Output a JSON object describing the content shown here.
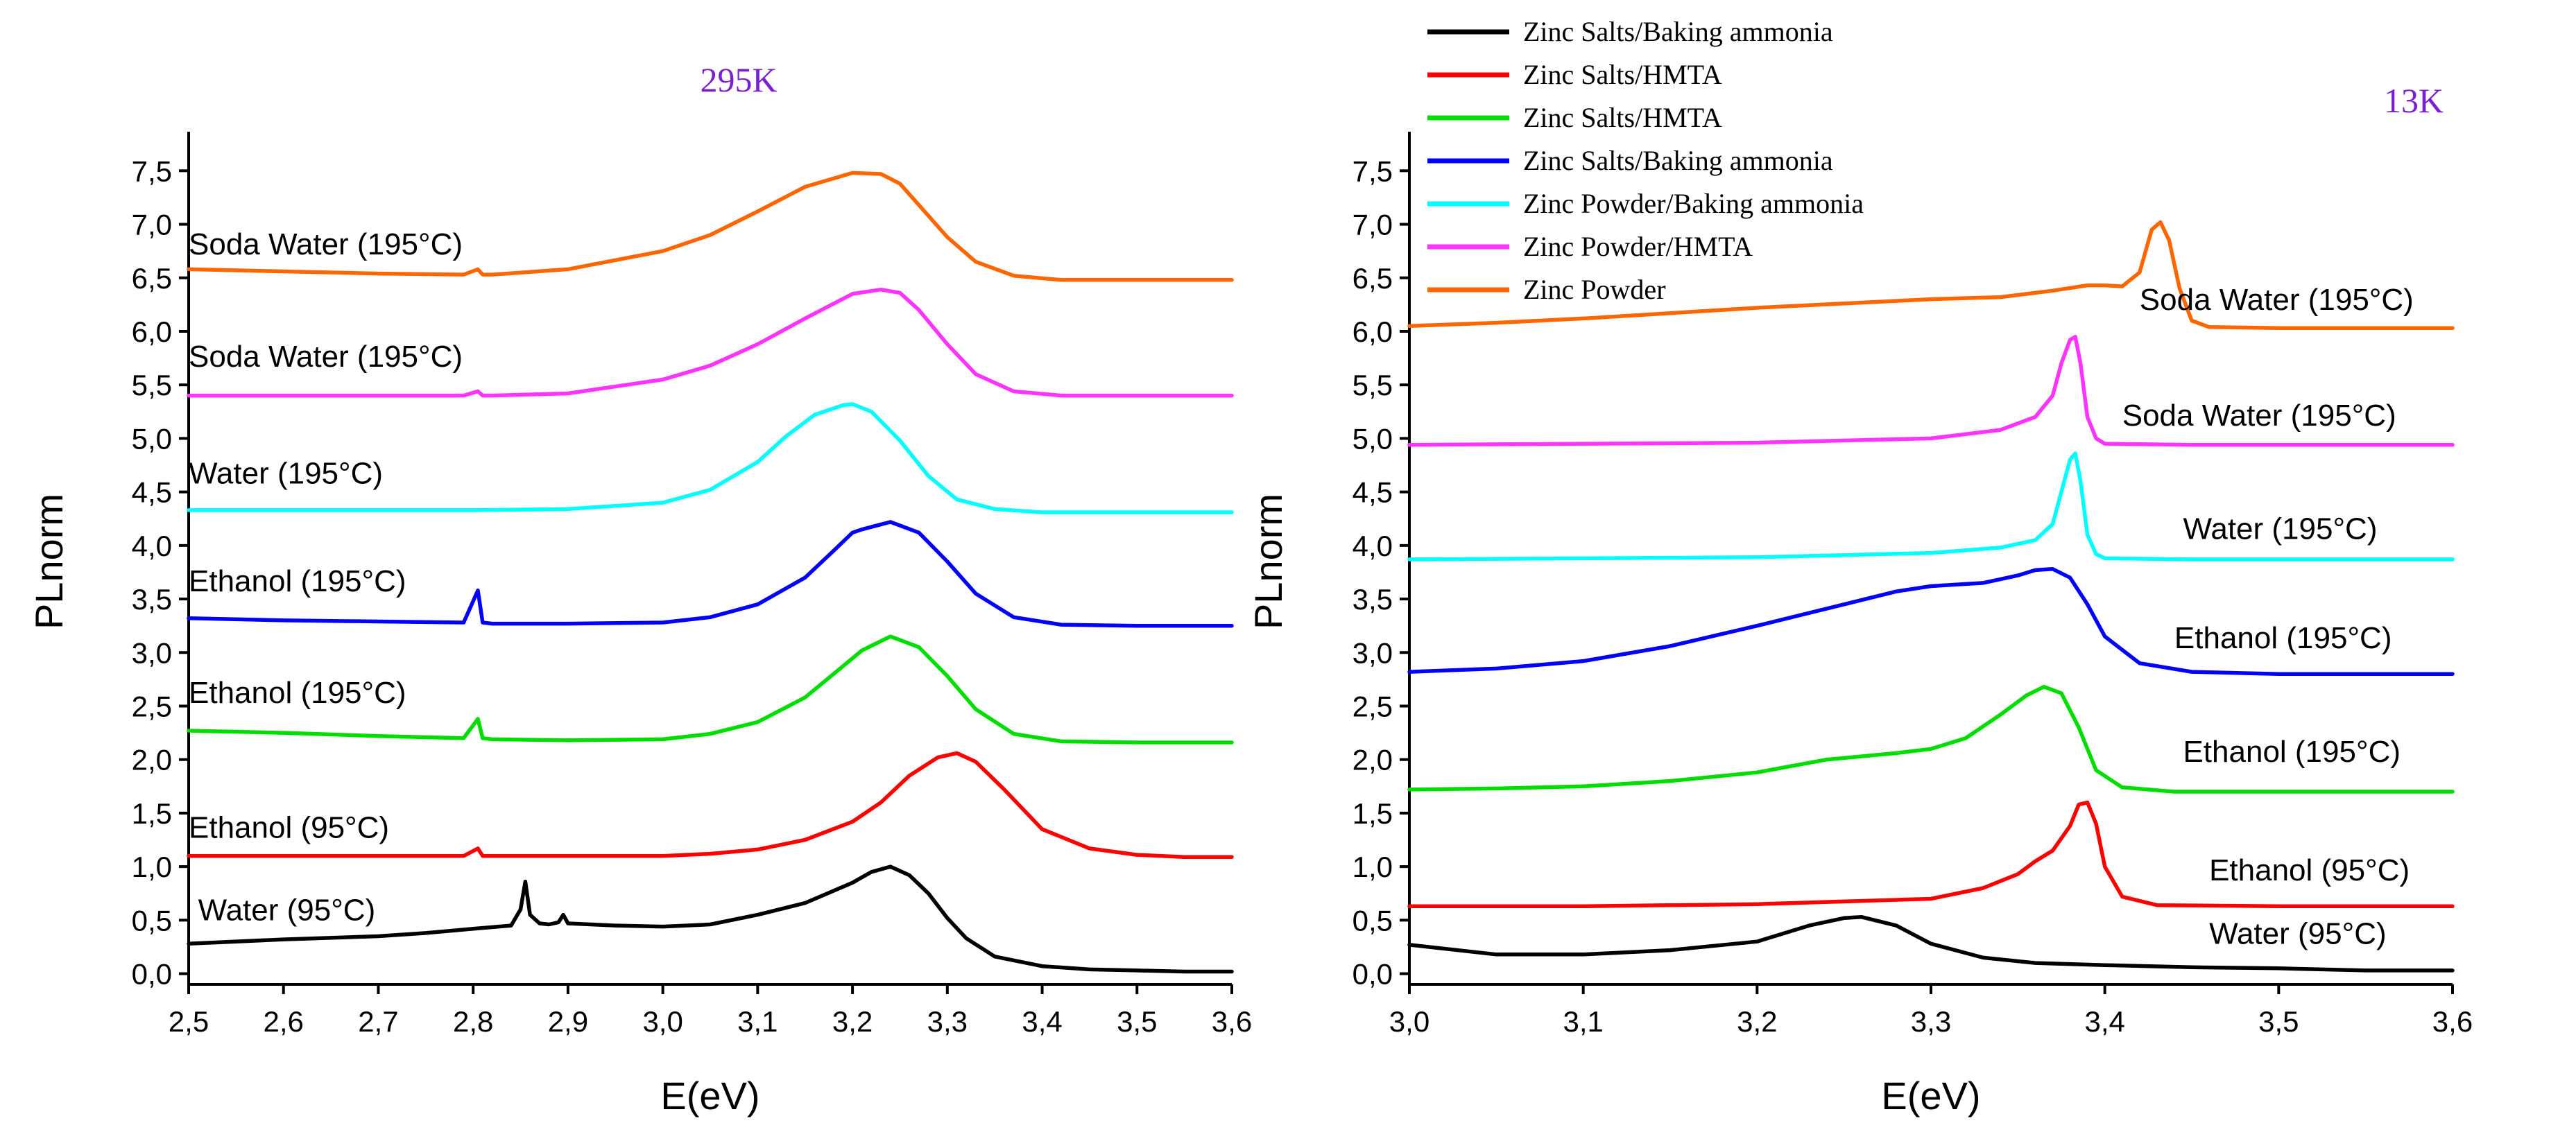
{
  "chart_data": [
    {
      "type": "line",
      "title": "295K",
      "xlabel": "E(eV)",
      "ylabel": "PLnorm",
      "xlim": [
        2.5,
        3.6
      ],
      "ylim": [
        -0.1,
        7.8
      ],
      "xticks": [
        2.5,
        2.6,
        2.7,
        2.8,
        2.9,
        3.0,
        3.1,
        3.2,
        3.3,
        3.4,
        3.5,
        3.6
      ],
      "xtick_labels": [
        "2,5",
        "2,6",
        "2,7",
        "2,8",
        "2,9",
        "3,0",
        "3,1",
        "3,2",
        "3,3",
        "3,4",
        "3,5",
        "3,6"
      ],
      "yticks": [
        0,
        0.5,
        1.0,
        1.5,
        2.0,
        2.5,
        3.0,
        3.5,
        4.0,
        4.5,
        5.0,
        5.5,
        6.0,
        6.5,
        7.0,
        7.5
      ],
      "ytick_labels": [
        "0,0",
        "0,5",
        "1,0",
        "1,5",
        "2,0",
        "2,5",
        "3,0",
        "3,5",
        "4,0",
        "4,5",
        "5,0",
        "5,5",
        "6,0",
        "6,5",
        "7,0",
        "7,5"
      ],
      "grid": false,
      "series": [
        {
          "name": "Zinc Salts/Baking ammonia",
          "label": "Water (95°C)",
          "label_at": [
            2.51,
            0.5
          ],
          "color": "#000000",
          "x": [
            2.5,
            2.6,
            2.7,
            2.75,
            2.8,
            2.84,
            2.85,
            2.855,
            2.86,
            2.87,
            2.88,
            2.89,
            2.895,
            2.9,
            2.95,
            3.0,
            3.05,
            3.1,
            3.15,
            3.2,
            3.22,
            3.24,
            3.26,
            3.28,
            3.3,
            3.32,
            3.35,
            3.4,
            3.45,
            3.5,
            3.55,
            3.6
          ],
          "y": [
            0.28,
            0.32,
            0.35,
            0.38,
            0.42,
            0.45,
            0.6,
            0.86,
            0.55,
            0.47,
            0.46,
            0.48,
            0.55,
            0.47,
            0.45,
            0.44,
            0.46,
            0.55,
            0.66,
            0.85,
            0.95,
            1.0,
            0.92,
            0.75,
            0.52,
            0.33,
            0.16,
            0.07,
            0.04,
            0.03,
            0.02,
            0.02
          ]
        },
        {
          "name": "Zinc Salts/HMTA",
          "label": "Ethanol (95°C)",
          "label_at": [
            2.5,
            1.27
          ],
          "color": "#ff0000",
          "x": [
            2.5,
            2.6,
            2.7,
            2.79,
            2.805,
            2.81,
            2.82,
            2.9,
            3.0,
            3.05,
            3.1,
            3.15,
            3.2,
            3.23,
            3.26,
            3.29,
            3.31,
            3.33,
            3.36,
            3.4,
            3.45,
            3.5,
            3.55,
            3.6
          ],
          "y": [
            1.1,
            1.1,
            1.1,
            1.1,
            1.17,
            1.1,
            1.1,
            1.1,
            1.1,
            1.12,
            1.16,
            1.25,
            1.42,
            1.6,
            1.85,
            2.02,
            2.06,
            1.98,
            1.72,
            1.35,
            1.17,
            1.11,
            1.09,
            1.09
          ]
        },
        {
          "name": "Zinc Salts/HMTA",
          "label": "Ethanol (195°C)",
          "label_at": [
            2.5,
            2.53
          ],
          "color": "#00dd00",
          "x": [
            2.5,
            2.6,
            2.7,
            2.79,
            2.805,
            2.81,
            2.82,
            2.9,
            3.0,
            3.05,
            3.1,
            3.15,
            3.18,
            3.21,
            3.24,
            3.27,
            3.3,
            3.33,
            3.37,
            3.42,
            3.5,
            3.6
          ],
          "y": [
            2.27,
            2.25,
            2.22,
            2.2,
            2.38,
            2.2,
            2.19,
            2.18,
            2.19,
            2.24,
            2.35,
            2.58,
            2.8,
            3.02,
            3.15,
            3.05,
            2.78,
            2.47,
            2.24,
            2.17,
            2.16,
            2.16
          ]
        },
        {
          "name": "Zinc Salts/Baking ammonia",
          "label": "Ethanol (195°C)",
          "label_at": [
            2.5,
            3.57
          ],
          "color": "#0000ff",
          "x": [
            2.5,
            2.6,
            2.7,
            2.79,
            2.805,
            2.81,
            2.82,
            2.9,
            3.0,
            3.05,
            3.1,
            3.15,
            3.18,
            3.2,
            3.21,
            3.24,
            3.27,
            3.3,
            3.33,
            3.37,
            3.42,
            3.5,
            3.6
          ],
          "y": [
            3.32,
            3.3,
            3.29,
            3.28,
            3.58,
            3.28,
            3.27,
            3.27,
            3.28,
            3.33,
            3.45,
            3.7,
            3.95,
            4.12,
            4.15,
            4.22,
            4.12,
            3.85,
            3.55,
            3.33,
            3.26,
            3.25,
            3.25
          ]
        },
        {
          "name": "Zinc Powder/Baking ammonia",
          "label": "Water (195°C)",
          "label_at": [
            2.5,
            4.58
          ],
          "color": "#00ffff",
          "x": [
            2.5,
            2.6,
            2.7,
            2.8,
            2.9,
            3.0,
            3.05,
            3.1,
            3.13,
            3.16,
            3.19,
            3.2,
            3.22,
            3.25,
            3.28,
            3.31,
            3.35,
            3.4,
            3.5,
            3.6
          ],
          "y": [
            4.33,
            4.33,
            4.33,
            4.33,
            4.34,
            4.4,
            4.52,
            4.78,
            5.02,
            5.22,
            5.31,
            5.32,
            5.25,
            4.98,
            4.65,
            4.43,
            4.34,
            4.31,
            4.31,
            4.31
          ]
        },
        {
          "name": "Zinc Powder/HMTA",
          "label": "Soda Water (195°C)",
          "label_at": [
            2.5,
            5.67
          ],
          "color": "#ff33ff",
          "x": [
            2.5,
            2.6,
            2.7,
            2.79,
            2.805,
            2.81,
            2.82,
            2.9,
            3.0,
            3.05,
            3.1,
            3.15,
            3.2,
            3.23,
            3.25,
            3.27,
            3.3,
            3.33,
            3.37,
            3.42,
            3.5,
            3.6
          ],
          "y": [
            5.4,
            5.4,
            5.4,
            5.4,
            5.44,
            5.4,
            5.4,
            5.42,
            5.55,
            5.68,
            5.88,
            6.12,
            6.35,
            6.39,
            6.36,
            6.2,
            5.88,
            5.6,
            5.44,
            5.4,
            5.4,
            5.4
          ]
        },
        {
          "name": "Zinc Powder",
          "label": "Soda Water (195°C)",
          "label_at": [
            2.5,
            6.72
          ],
          "color": "#ff6600",
          "x": [
            2.5,
            2.6,
            2.7,
            2.79,
            2.805,
            2.81,
            2.82,
            2.9,
            3.0,
            3.05,
            3.1,
            3.15,
            3.2,
            3.23,
            3.25,
            3.27,
            3.3,
            3.33,
            3.37,
            3.42,
            3.5,
            3.6
          ],
          "y": [
            6.58,
            6.56,
            6.54,
            6.53,
            6.58,
            6.53,
            6.53,
            6.58,
            6.75,
            6.9,
            7.12,
            7.35,
            7.48,
            7.47,
            7.38,
            7.18,
            6.88,
            6.65,
            6.52,
            6.48,
            6.48,
            6.48
          ]
        }
      ]
    },
    {
      "type": "line",
      "title": "13K",
      "xlabel": "E(eV)",
      "ylabel": "PLnorm",
      "xlim": [
        3.0,
        3.6
      ],
      "ylim": [
        -0.1,
        7.8
      ],
      "xticks": [
        3.0,
        3.1,
        3.2,
        3.3,
        3.4,
        3.5,
        3.6
      ],
      "xtick_labels": [
        "3,0",
        "3,1",
        "3,2",
        "3,3",
        "3,4",
        "3,5",
        "3,6"
      ],
      "yticks": [
        0,
        0.5,
        1.0,
        1.5,
        2.0,
        2.5,
        3.0,
        3.5,
        4.0,
        4.5,
        5.0,
        5.5,
        6.0,
        6.5,
        7.0,
        7.5
      ],
      "ytick_labels": [
        "0,0",
        "0,5",
        "1,0",
        "1,5",
        "2,0",
        "2,5",
        "3,0",
        "3,5",
        "4,0",
        "4,5",
        "5,0",
        "5,5",
        "6,0",
        "6,5",
        "7,0",
        "7,5"
      ],
      "grid": false,
      "legend": {
        "placement": "top-left",
        "entries": [
          {
            "label": "Zinc Salts/Baking ammonia",
            "color": "#000000"
          },
          {
            "label": "Zinc Salts/HMTA",
            "color": "#ff0000"
          },
          {
            "label": "Zinc Salts/HMTA",
            "color": "#00dd00"
          },
          {
            "label": "Zinc Salts/Baking ammonia",
            "color": "#0000ff"
          },
          {
            "label": "Zinc Powder/Baking ammonia",
            "color": "#00ffff"
          },
          {
            "label": "Zinc Powder/HMTA",
            "color": "#ff33ff"
          },
          {
            "label": "Zinc Powder",
            "color": "#ff6600"
          }
        ]
      },
      "series": [
        {
          "name": "Zinc Salts/Baking ammonia",
          "label": "Water (95°C)",
          "label_at": [
            3.46,
            0.28
          ],
          "color": "#000000",
          "x": [
            3.0,
            3.05,
            3.1,
            3.15,
            3.2,
            3.23,
            3.25,
            3.26,
            3.28,
            3.3,
            3.33,
            3.36,
            3.4,
            3.45,
            3.5,
            3.55,
            3.6
          ],
          "y": [
            0.27,
            0.18,
            0.18,
            0.22,
            0.3,
            0.45,
            0.52,
            0.53,
            0.45,
            0.28,
            0.15,
            0.1,
            0.08,
            0.06,
            0.05,
            0.03,
            0.03
          ]
        },
        {
          "name": "Zinc Salts/HMTA",
          "label": "Ethanol (95°C)",
          "label_at": [
            3.46,
            0.87
          ],
          "color": "#ff0000",
          "x": [
            3.0,
            3.1,
            3.2,
            3.3,
            3.33,
            3.35,
            3.36,
            3.37,
            3.38,
            3.385,
            3.39,
            3.395,
            3.4,
            3.41,
            3.43,
            3.5,
            3.6
          ],
          "y": [
            0.63,
            0.63,
            0.65,
            0.7,
            0.8,
            0.93,
            1.05,
            1.15,
            1.38,
            1.58,
            1.6,
            1.4,
            1.0,
            0.72,
            0.64,
            0.63,
            0.63
          ]
        },
        {
          "name": "Zinc Salts/HMTA",
          "label": "Ethanol (195°C)",
          "label_at": [
            3.445,
            1.98
          ],
          "color": "#00dd00",
          "x": [
            3.0,
            3.05,
            3.1,
            3.15,
            3.2,
            3.24,
            3.28,
            3.3,
            3.32,
            3.34,
            3.355,
            3.365,
            3.375,
            3.385,
            3.395,
            3.41,
            3.44,
            3.5,
            3.6
          ],
          "y": [
            1.72,
            1.73,
            1.75,
            1.8,
            1.88,
            2.0,
            2.06,
            2.1,
            2.2,
            2.42,
            2.6,
            2.68,
            2.62,
            2.3,
            1.9,
            1.74,
            1.7,
            1.7,
            1.7
          ]
        },
        {
          "name": "Zinc Salts/Baking ammonia",
          "label": "Ethanol (195°C)",
          "label_at": [
            3.44,
            3.04
          ],
          "color": "#0000ff",
          "x": [
            3.0,
            3.05,
            3.1,
            3.15,
            3.2,
            3.25,
            3.28,
            3.3,
            3.33,
            3.35,
            3.36,
            3.37,
            3.38,
            3.39,
            3.4,
            3.42,
            3.45,
            3.5,
            3.6
          ],
          "y": [
            2.82,
            2.85,
            2.92,
            3.06,
            3.25,
            3.45,
            3.57,
            3.62,
            3.65,
            3.72,
            3.77,
            3.78,
            3.7,
            3.45,
            3.15,
            2.9,
            2.82,
            2.8,
            2.8
          ]
        },
        {
          "name": "Zinc Powder/Baking ammonia",
          "label": "Water (195°C)",
          "label_at": [
            3.445,
            4.06
          ],
          "color": "#00ffff",
          "x": [
            3.0,
            3.1,
            3.2,
            3.3,
            3.34,
            3.36,
            3.37,
            3.375,
            3.38,
            3.383,
            3.386,
            3.39,
            3.395,
            3.4,
            3.45,
            3.5,
            3.6
          ],
          "y": [
            3.87,
            3.88,
            3.89,
            3.93,
            3.98,
            4.05,
            4.2,
            4.5,
            4.8,
            4.86,
            4.6,
            4.1,
            3.92,
            3.88,
            3.87,
            3.87,
            3.87
          ]
        },
        {
          "name": "Zinc Powder/HMTA",
          "label": "Soda Water (195°C)",
          "label_at": [
            3.41,
            5.12
          ],
          "color": "#ff33ff",
          "x": [
            3.0,
            3.1,
            3.2,
            3.3,
            3.34,
            3.36,
            3.37,
            3.375,
            3.38,
            3.383,
            3.386,
            3.39,
            3.395,
            3.4,
            3.45,
            3.5,
            3.6
          ],
          "y": [
            4.94,
            4.95,
            4.96,
            5.0,
            5.08,
            5.2,
            5.4,
            5.7,
            5.92,
            5.95,
            5.7,
            5.2,
            5.0,
            4.95,
            4.94,
            4.94,
            4.94
          ]
        },
        {
          "name": "Zinc Powder",
          "label": "Soda Water (195°C)",
          "label_at": [
            3.42,
            6.2
          ],
          "color": "#ff6600",
          "x": [
            3.0,
            3.05,
            3.1,
            3.15,
            3.2,
            3.25,
            3.3,
            3.34,
            3.37,
            3.39,
            3.4,
            3.41,
            3.42,
            3.427,
            3.432,
            3.437,
            3.443,
            3.45,
            3.46,
            3.5,
            3.6
          ],
          "y": [
            6.05,
            6.08,
            6.12,
            6.17,
            6.22,
            6.26,
            6.3,
            6.32,
            6.38,
            6.43,
            6.43,
            6.42,
            6.55,
            6.95,
            7.02,
            6.85,
            6.4,
            6.1,
            6.04,
            6.03,
            6.03
          ]
        }
      ]
    }
  ]
}
